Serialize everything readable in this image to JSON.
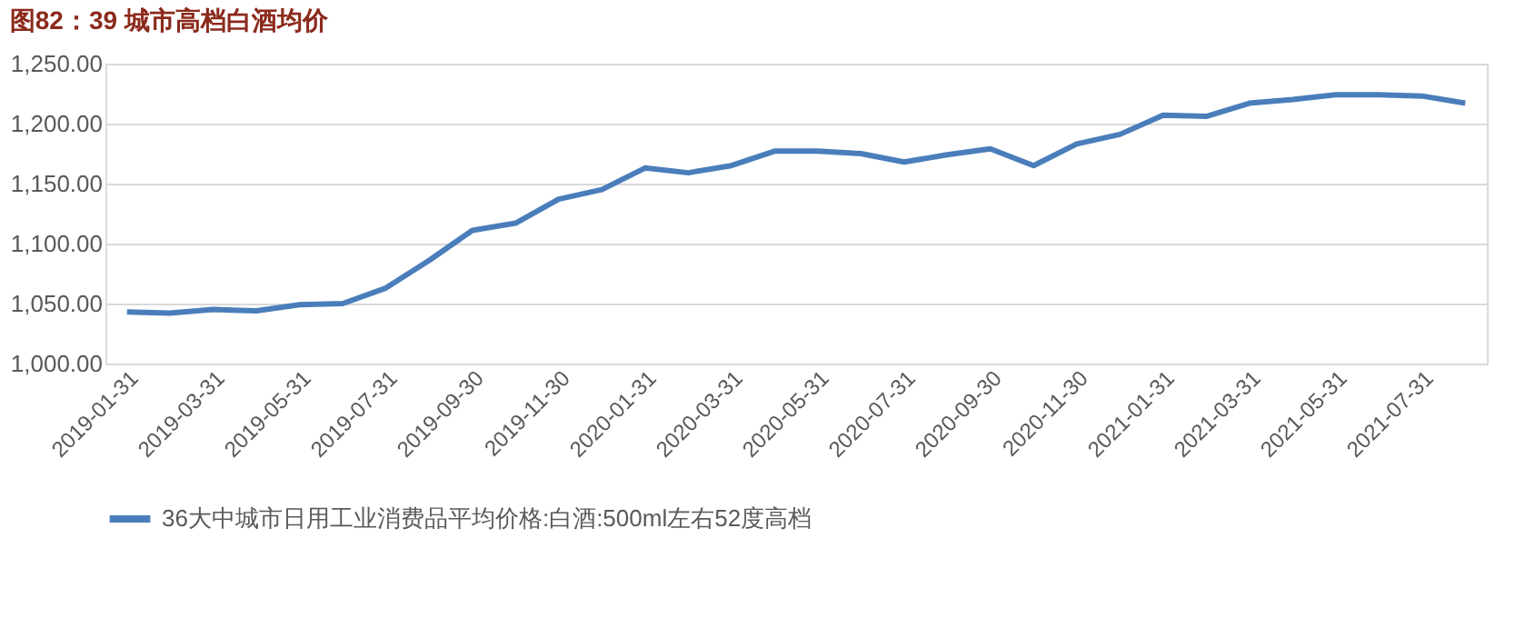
{
  "chart_data": {
    "type": "line",
    "title": "图82：39 城市高档白酒均价",
    "categories": [
      "2019-01-31",
      null,
      "2019-03-31",
      null,
      "2019-05-31",
      null,
      "2019-07-31",
      null,
      "2019-09-30",
      null,
      "2019-11-30",
      null,
      "2020-01-31",
      null,
      "2020-03-31",
      null,
      "2020-05-31",
      null,
      "2020-07-31",
      null,
      "2020-09-30",
      null,
      "2020-11-30",
      null,
      "2021-01-31",
      null,
      "2021-03-31",
      null,
      "2021-05-31",
      null,
      "2021-07-31",
      null
    ],
    "series": [
      {
        "name": "36大中城市日用工业消费品平均价格:白酒:500ml左右52度高档",
        "color": "#4a7ebb",
        "values": [
          1043,
          1042,
          1045,
          1044,
          1049,
          1050,
          1063,
          1086,
          1111,
          1117,
          1137,
          1145,
          1163,
          1159,
          1165,
          1177,
          1177,
          1175,
          1168,
          1174,
          1179,
          1165,
          1183,
          1191,
          1207,
          1206,
          1217,
          1220,
          1224,
          1224,
          1223,
          1217
        ]
      }
    ],
    "ylim": [
      1000,
      1250
    ],
    "yticks": [
      {
        "value": 1000,
        "label": "1,000.00"
      },
      {
        "value": 1050,
        "label": "1,050.00"
      },
      {
        "value": 1100,
        "label": "1,100.00"
      },
      {
        "value": 1150,
        "label": "1,150.00"
      },
      {
        "value": 1200,
        "label": "1,200.00"
      },
      {
        "value": 1250,
        "label": "1,250.00"
      }
    ],
    "grid": "y",
    "legend": "bottom",
    "marker": "none",
    "line_style": "solid"
  }
}
